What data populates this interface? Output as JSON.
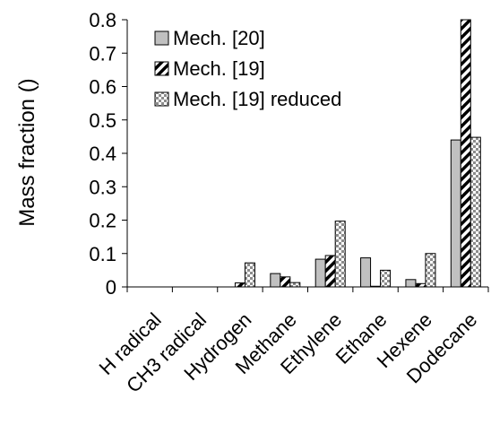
{
  "chart_data": {
    "type": "bar",
    "ylabel": "Mass fraction ()",
    "xlabel": "",
    "ylim": [
      0,
      0.8
    ],
    "yticks": [
      "0",
      "0.1",
      "0.2",
      "0.3",
      "0.4",
      "0.5",
      "0.6",
      "0.7",
      "0.8"
    ],
    "categories": [
      "H radical",
      "CH3 radical",
      "Hydrogen",
      "Methane",
      "Ethylene",
      "Ethane",
      "Hexene",
      "Dodecane"
    ],
    "legend_position": "top-left",
    "grid": false,
    "series": [
      {
        "name": "Mech. [20]",
        "pattern": "solid-gray",
        "values": [
          0,
          0,
          0,
          0.04,
          0.083,
          0.087,
          0.022,
          0.44
        ]
      },
      {
        "name": "Mech. [19]",
        "pattern": "diagonal-hatch",
        "values": [
          0,
          0,
          0.012,
          0.03,
          0.094,
          0.002,
          0.01,
          0.8
        ]
      },
      {
        "name": "Mech. [19] reduced",
        "pattern": "checker",
        "values": [
          0,
          0,
          0.072,
          0.013,
          0.197,
          0.05,
          0.1,
          0.448
        ]
      }
    ]
  }
}
